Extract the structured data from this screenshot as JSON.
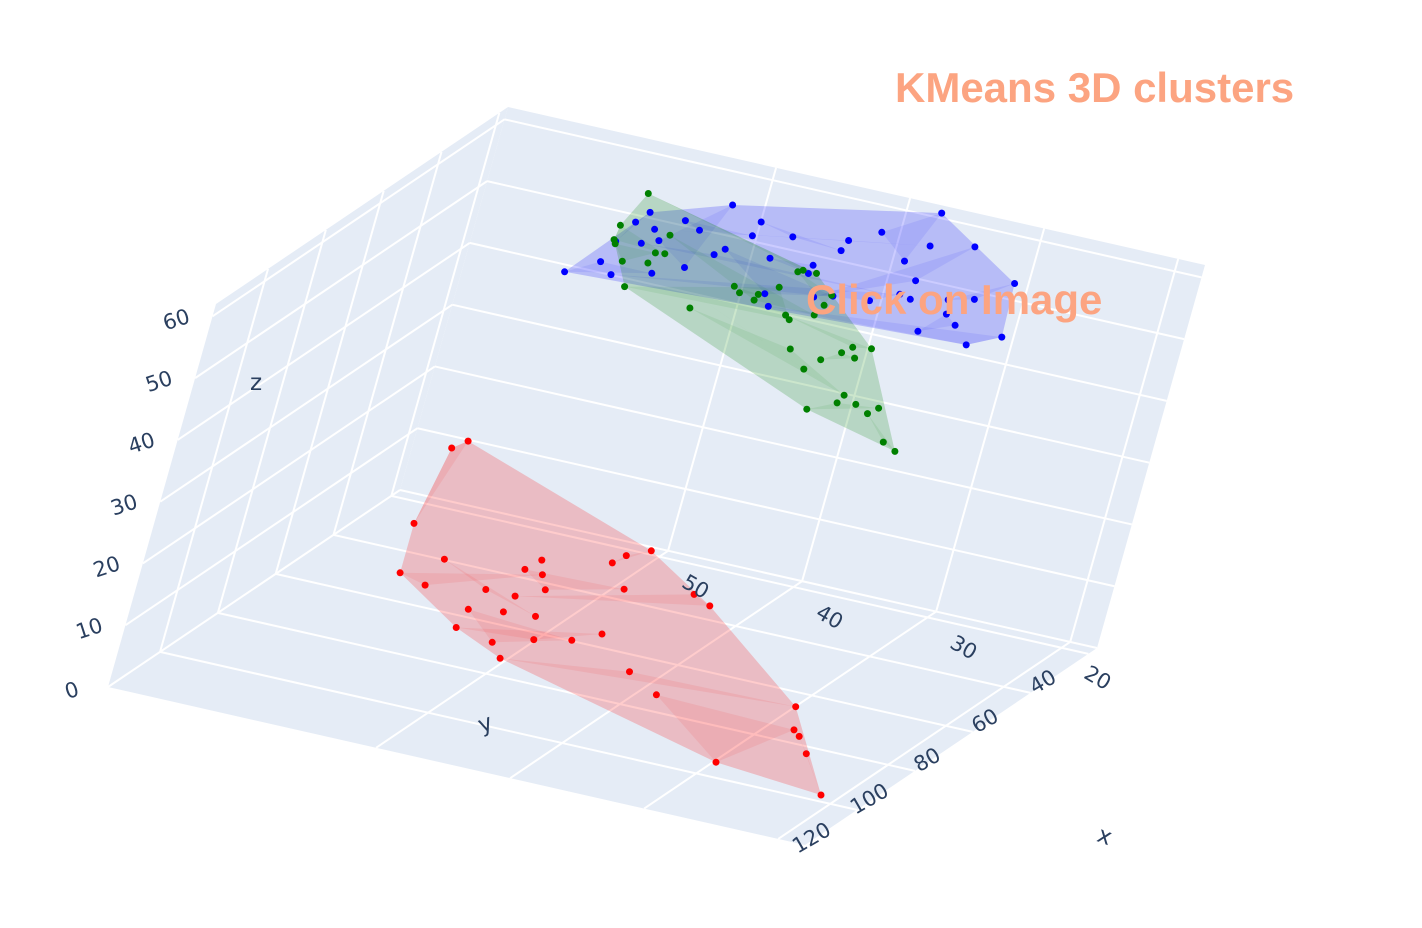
{
  "colors": {
    "title": "#fca481",
    "pane": "#e5ecf6",
    "grid": "#ffffff",
    "tick_text": "#2a3f5f",
    "cluster_0": "#0000ff",
    "cluster_1": "#008000",
    "cluster_2": "#ff0000"
  },
  "chart_data": {
    "type": "scatter",
    "mode": "3d",
    "title": "KMeans 3D clusters",
    "annotation": "Click on Image",
    "xlabel": "x",
    "ylabel": "y",
    "zlabel": "z",
    "xlim": [
      18,
      70
    ],
    "ylim": [
      37,
      138
    ],
    "zlim": [
      0,
      62
    ],
    "x_ticks": [
      "20",
      "30",
      "40",
      "50"
    ],
    "y_ticks": [
      "40",
      "60",
      "80",
      "100",
      "120"
    ],
    "z_ticks": [
      "0",
      "10",
      "20",
      "30",
      "40",
      "50",
      "60"
    ],
    "grid": true,
    "legend": "none",
    "series": [
      {
        "color": "#0000ff",
        "points": [
          [
            57,
            54,
            52
          ],
          [
            55,
            55,
            58
          ],
          [
            55,
            60,
            58
          ],
          [
            53,
            60,
            56
          ],
          [
            51,
            58,
            52
          ],
          [
            51,
            45,
            58
          ],
          [
            48,
            49,
            58
          ],
          [
            45,
            52,
            58
          ],
          [
            42,
            48,
            56
          ],
          [
            40,
            45,
            59
          ],
          [
            38,
            44,
            55
          ],
          [
            37,
            40,
            62
          ],
          [
            42,
            46,
            57
          ],
          [
            37,
            41,
            57
          ],
          [
            55,
            51,
            54
          ],
          [
            54,
            45,
            54
          ],
          [
            52,
            50,
            55
          ],
          [
            49,
            45,
            54
          ],
          [
            47,
            47,
            52
          ],
          [
            44,
            47,
            51
          ],
          [
            44,
            46,
            52
          ],
          [
            43,
            48,
            48
          ],
          [
            37,
            43,
            52
          ],
          [
            34,
            40,
            58
          ],
          [
            34,
            45,
            51
          ],
          [
            30,
            43,
            55
          ],
          [
            33,
            40,
            50
          ],
          [
            46,
            51,
            48
          ],
          [
            42,
            46,
            48
          ],
          [
            49,
            55,
            55
          ],
          [
            57,
            58,
            50
          ],
          [
            59,
            60,
            48
          ],
          [
            54,
            53,
            48
          ],
          [
            57,
            52,
            46
          ],
          [
            38,
            42,
            49
          ],
          [
            40,
            42,
            47
          ],
          [
            35,
            38,
            46
          ],
          [
            34,
            39,
            45
          ],
          [
            36,
            42,
            44
          ],
          [
            30,
            42,
            46
          ],
          [
            33,
            38,
            42
          ],
          [
            46,
            48,
            45
          ],
          [
            50,
            53,
            53
          ],
          [
            55,
            55,
            53
          ],
          [
            37,
            43,
            49
          ]
        ]
      },
      {
        "color": "#008000",
        "points": [
          [
            55,
            58,
            62
          ],
          [
            39,
            74,
            62
          ],
          [
            40,
            74,
            62
          ],
          [
            41,
            70,
            60
          ],
          [
            38,
            71,
            58
          ],
          [
            38,
            73,
            57
          ],
          [
            45,
            68,
            54
          ],
          [
            45,
            71,
            56
          ],
          [
            43,
            72,
            56
          ],
          [
            41,
            70,
            53
          ],
          [
            35,
            74,
            52
          ],
          [
            33,
            78,
            54
          ],
          [
            34,
            78,
            52
          ],
          [
            36,
            72,
            50
          ],
          [
            37,
            74,
            49
          ],
          [
            39,
            70,
            54
          ],
          [
            44,
            67,
            53
          ],
          [
            52,
            62,
            58
          ],
          [
            56,
            60,
            57
          ],
          [
            52,
            62,
            55
          ],
          [
            56,
            61,
            55
          ],
          [
            53,
            60,
            54
          ],
          [
            56,
            60,
            54
          ],
          [
            55,
            61,
            52
          ],
          [
            49,
            63,
            48
          ],
          [
            40,
            70,
            48
          ],
          [
            34,
            78,
            46
          ],
          [
            31,
            80,
            46
          ],
          [
            35,
            74,
            43
          ],
          [
            37,
            74,
            41
          ],
          [
            30,
            80,
            41
          ],
          [
            29,
            80,
            40
          ],
          [
            32,
            78,
            44
          ],
          [
            33,
            78,
            45
          ],
          [
            38,
            74,
            47
          ],
          [
            53,
            62,
            53
          ],
          [
            54,
            63,
            49
          ],
          [
            42,
            70,
            57
          ],
          [
            40,
            74,
            54
          ]
        ]
      },
      {
        "color": "#ff0000",
        "points": [
          [
            59,
            87,
            28
          ],
          [
            57,
            93,
            32
          ],
          [
            59,
            94,
            18
          ],
          [
            41,
            99,
            24
          ],
          [
            42,
            103,
            24
          ],
          [
            43,
            102,
            22
          ],
          [
            41,
            106,
            20
          ],
          [
            49,
            102,
            18
          ],
          [
            47,
            103,
            16
          ],
          [
            48,
            100,
            17
          ],
          [
            57,
            94,
            9
          ],
          [
            59,
            94,
            10
          ],
          [
            49,
            103,
            14
          ],
          [
            35,
            112,
            24
          ],
          [
            34,
            110,
            22
          ],
          [
            51,
            95,
            3
          ],
          [
            53,
            97,
            8
          ],
          [
            43,
            110,
            12
          ],
          [
            41,
            110,
            14
          ],
          [
            46,
            108,
            10
          ],
          [
            53,
            100,
            6
          ],
          [
            48,
            108,
            6
          ],
          [
            38,
            112,
            10
          ],
          [
            25,
            116,
            12
          ],
          [
            24,
            117,
            8
          ],
          [
            23,
            118,
            6
          ],
          [
            20,
            125,
            3
          ],
          [
            29,
            119,
            2
          ],
          [
            24,
            120,
            10
          ],
          [
            35,
            116,
            9
          ],
          [
            47,
            104,
            12
          ],
          [
            56,
            95,
            14
          ],
          [
            52,
            98,
            12
          ],
          [
            50,
            100,
            10
          ],
          [
            48,
            102,
            20
          ]
        ]
      }
    ]
  }
}
